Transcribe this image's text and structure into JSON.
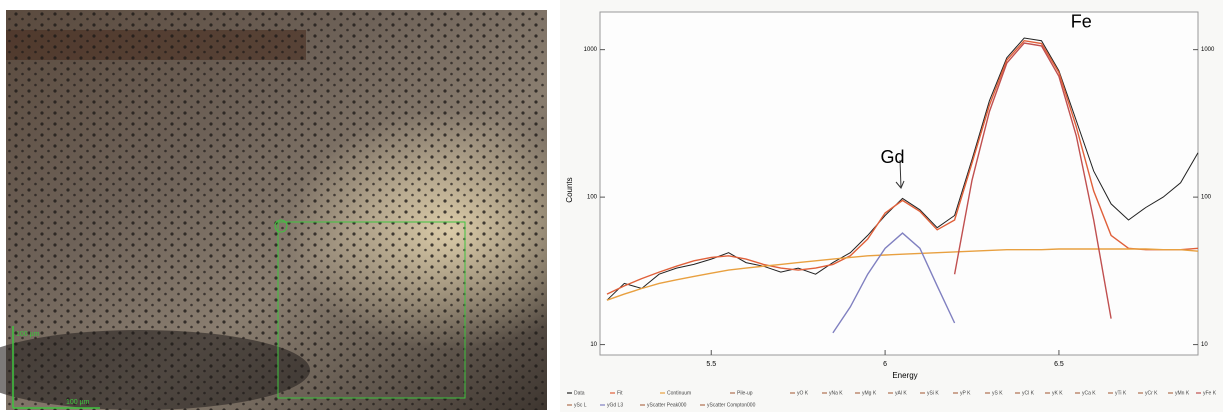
{
  "micrograph": {
    "scale_labels": [
      "100 µm",
      "100 µm"
    ]
  },
  "chart_data": {
    "type": "line",
    "xlabel": "Energy",
    "ylabel": "Counts",
    "x": [
      5.2,
      5.25,
      5.3,
      5.35,
      5.4,
      5.45,
      5.5,
      5.55,
      5.6,
      5.65,
      5.7,
      5.75,
      5.8,
      5.85,
      5.9,
      5.95,
      6.0,
      6.05,
      6.1,
      6.15,
      6.2,
      6.25,
      6.3,
      6.35,
      6.4,
      6.45,
      6.5,
      6.55,
      6.6,
      6.65,
      6.7,
      6.75,
      6.8,
      6.85,
      6.9
    ],
    "series": [
      {
        "name": "Data",
        "color": "#222222",
        "values": [
          20,
          26,
          24,
          30,
          33,
          35,
          38,
          42,
          36,
          34,
          31,
          33,
          30,
          36,
          42,
          55,
          75,
          98,
          82,
          62,
          75,
          180,
          450,
          880,
          1200,
          1150,
          720,
          330,
          150,
          90,
          70,
          85,
          100,
          125,
          200
        ]
      },
      {
        "name": "Fit",
        "color": "#e0603a",
        "values": [
          22,
          25,
          28,
          31,
          34,
          37,
          39,
          40,
          38,
          35,
          33,
          32,
          33,
          35,
          40,
          52,
          78,
          95,
          80,
          60,
          70,
          170,
          420,
          850,
          1150,
          1100,
          700,
          300,
          110,
          55,
          45,
          44,
          44,
          44,
          45
        ]
      },
      {
        "name": "Continuum",
        "color": "#e8a040",
        "values": [
          20,
          22,
          24,
          26,
          27.5,
          29,
          30.5,
          32,
          33,
          34,
          35,
          36,
          37,
          38,
          39,
          40,
          40.5,
          41,
          41.5,
          42,
          42.5,
          43,
          43.5,
          44,
          44,
          44,
          44.5,
          44.5,
          44.5,
          44.5,
          44.5,
          44.5,
          44,
          44,
          43
        ]
      },
      {
        "name": "yFe K",
        "color": "#c05050",
        "values": [
          null,
          null,
          null,
          null,
          null,
          null,
          null,
          null,
          null,
          null,
          null,
          null,
          null,
          null,
          null,
          null,
          null,
          null,
          null,
          null,
          30,
          130,
          380,
          810,
          1110,
          1060,
          660,
          260,
          70,
          15,
          null,
          null,
          null,
          null,
          null
        ]
      },
      {
        "name": "yGd L3",
        "color": "#8080c0",
        "values": [
          null,
          null,
          null,
          null,
          null,
          null,
          null,
          null,
          null,
          null,
          null,
          null,
          null,
          12,
          18,
          30,
          45,
          57,
          45,
          25,
          14,
          null,
          null,
          null,
          null,
          null,
          null,
          null,
          null,
          null,
          null,
          null,
          null,
          null,
          null
        ]
      }
    ],
    "legend_extra": [
      "Pile-up",
      "yO K",
      "yNa K",
      "yMg K",
      "yAl K",
      "ySi K",
      "yP K",
      "yS K",
      "yCl K",
      "yK K",
      "yCa K",
      "yTi K",
      "yCr K",
      "yMn K",
      "ySc L",
      "yScatter Peak000",
      "yScatter Compton000"
    ],
    "annotations": [
      {
        "text": "Gd",
        "x": 6.05,
        "y": 95
      },
      {
        "text": "Fe",
        "x": 6.55,
        "y": 1150
      }
    ],
    "xlim": [
      5.18,
      6.9
    ],
    "xticks": [
      5.5,
      6,
      6.5
    ],
    "ylim": [
      8.5,
      1800
    ],
    "yticks": [
      10,
      100,
      1000
    ],
    "y2lim": [
      8.5,
      1800
    ],
    "y2ticks": [
      10,
      100,
      1000
    ],
    "log_y": true
  }
}
